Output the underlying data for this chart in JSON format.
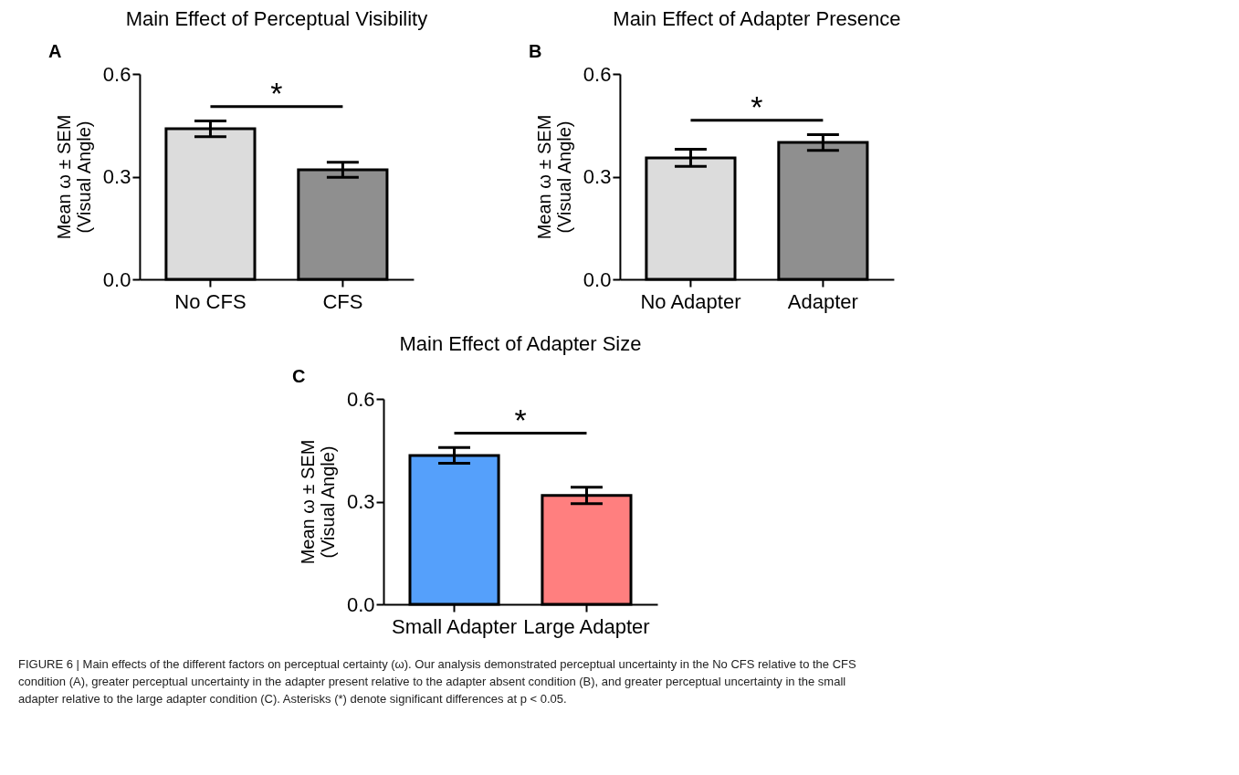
{
  "chart_data": [
    {
      "type": "bar",
      "title": "Main Effect of Perceptual Visibility",
      "ylabel": "Mean ω ± SEM\n(Visual Angle)",
      "categories": [
        "No CFS",
        "CFS"
      ],
      "values": [
        0.44,
        0.32
      ],
      "errors": [
        0.023,
        0.022
      ],
      "colors": [
        "#dcdcdc",
        "#8f8f8f"
      ],
      "ylim": [
        0,
        0.6
      ],
      "yticks": [
        {
          "value": 0,
          "label": "0.0"
        },
        {
          "value": 0.3,
          "label": "0.3"
        },
        {
          "value": 0.6,
          "label": "0.6"
        }
      ],
      "grid": false,
      "annotations": [
        "A",
        "*"
      ]
    },
    {
      "type": "bar",
      "title": "Main Effect of Adapter Presence",
      "ylabel": "Mean ω ± SEM\n(Visual Angle)",
      "categories": [
        "No Adapter",
        "Adapter"
      ],
      "values": [
        0.355,
        0.4
      ],
      "errors": [
        0.025,
        0.023
      ],
      "colors": [
        "#dcdcdc",
        "#8f8f8f"
      ],
      "ylim": [
        0,
        0.6
      ],
      "yticks": [
        {
          "value": 0,
          "label": "0.0"
        },
        {
          "value": 0.3,
          "label": "0.3"
        },
        {
          "value": 0.6,
          "label": "0.6"
        }
      ],
      "grid": false,
      "annotations": [
        "B",
        "*"
      ]
    },
    {
      "type": "bar",
      "title": "Main Effect of Adapter Size",
      "ylabel": "Mean ω ± SEM\n(Visual Angle)",
      "categories": [
        "Small Adapter",
        "Large Adapter"
      ],
      "values": [
        0.435,
        0.318
      ],
      "errors": [
        0.023,
        0.024
      ],
      "colors": [
        "#55a0fb",
        "#ff7f7f"
      ],
      "ylim": [
        0,
        0.6
      ],
      "yticks": [
        {
          "value": 0,
          "label": "0.0"
        },
        {
          "value": 0.3,
          "label": "0.3"
        },
        {
          "value": 0.6,
          "label": "0.6"
        }
      ],
      "grid": false,
      "annotations": [
        "C",
        "*",
        "FIGURE 6 | Main effects of the different factors on perceptual certainty (ω). Our analysis demonstrated perceptual uncertainty in the No CFS relative to the CFS condition (A), greater perceptual uncertainty in the adapter present relative to the adapter absent condition (B), and greater perceptual uncertainty in the small adapter relative to the large adapter condition (C). Asterisks (*) denote significant differences at p < 0.05."
      ]
    }
  ]
}
